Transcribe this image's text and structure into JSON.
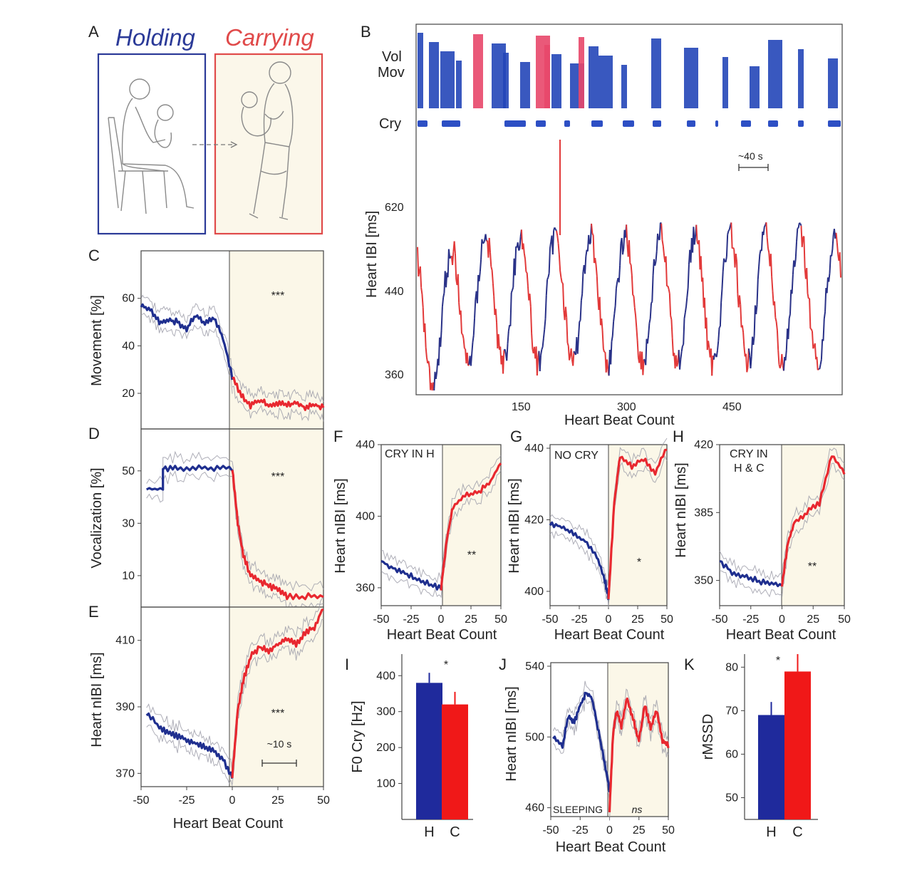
{
  "panelA": {
    "letter": "A",
    "left_label": "Holding",
    "right_label": "Carrying",
    "left_color": "#2b3a98",
    "right_color": "#e04a4a"
  },
  "panelB": {
    "letter": "B",
    "row_labels": [
      "Vol",
      "Mov",
      "Cry"
    ],
    "ylabel": "Heart IBI [ms]",
    "xlabel": "Heart Beat Count",
    "yticks": [
      360,
      440,
      620
    ],
    "xticks": [
      150,
      300,
      450
    ],
    "scale_bar": "~40 s"
  },
  "chart_data": [
    {
      "panel": "C",
      "type": "line",
      "ylabel": "Movement [%]",
      "xlabel": "",
      "x": [
        -50,
        -40,
        -30,
        -20,
        -10,
        0,
        10,
        20,
        30,
        40,
        50
      ],
      "series": [
        {
          "name": "Holding",
          "color": "#1f2f8f",
          "x": [
            -50,
            -45,
            -40,
            -35,
            -30,
            -25,
            -20,
            -15,
            -10,
            -5,
            0
          ],
          "y": [
            57,
            55,
            50,
            51,
            50,
            47,
            53,
            49,
            52,
            43,
            27
          ]
        },
        {
          "name": "Carrying",
          "color": "#e8282f",
          "x": [
            0,
            5,
            10,
            15,
            20,
            25,
            30,
            35,
            40,
            45,
            50
          ],
          "y": [
            27,
            19,
            15,
            17,
            15,
            16,
            15,
            16,
            14,
            15,
            14
          ]
        }
      ],
      "yticks": [
        20,
        40,
        60
      ],
      "ylim": [
        5,
        80
      ],
      "xlim": [
        -50,
        50
      ],
      "significance": "***"
    },
    {
      "panel": "D",
      "type": "line",
      "ylabel": "Vocalization [%]",
      "xlabel": "",
      "series": [
        {
          "name": "Holding",
          "color": "#1f2f8f",
          "x": [
            -47,
            -38,
            -38,
            -30,
            -20,
            -10,
            0
          ],
          "y": [
            43,
            43,
            51,
            51,
            51,
            51,
            51
          ]
        },
        {
          "name": "Carrying",
          "color": "#e8282f",
          "x": [
            0,
            3,
            6,
            10,
            15,
            20,
            25,
            30,
            40,
            50
          ],
          "y": [
            51,
            30,
            18,
            10,
            8,
            6,
            5,
            2,
            2,
            2
          ]
        }
      ],
      "yticks": [
        10,
        30,
        50
      ],
      "ylim": [
        -2,
        66
      ],
      "xlim": [
        -50,
        50
      ],
      "significance": "***"
    },
    {
      "panel": "E",
      "type": "line",
      "ylabel": "Heart nIBI [ms]",
      "xlabel": "Heart Beat Count",
      "series": [
        {
          "name": "Holding",
          "color": "#1f2f8f",
          "x": [
            -47,
            -40,
            -35,
            -30,
            -25,
            -20,
            -15,
            -10,
            -5,
            0
          ],
          "y": [
            388,
            384,
            382,
            381,
            380,
            379,
            378,
            377,
            374,
            369
          ]
        },
        {
          "name": "Carrying",
          "color": "#e8282f",
          "x": [
            0,
            3,
            6,
            10,
            15,
            20,
            25,
            30,
            35,
            40,
            45,
            50
          ],
          "y": [
            369,
            389,
            398,
            405,
            408,
            407,
            409,
            410,
            409,
            412,
            414,
            420
          ]
        }
      ],
      "xticks": [
        -50,
        -25,
        0,
        25,
        50
      ],
      "yticks": [
        370,
        390,
        410
      ],
      "ylim": [
        366,
        420
      ],
      "xlim": [
        -50,
        50
      ],
      "significance": "***",
      "scale_bar": "~10 s"
    },
    {
      "panel": "F",
      "type": "line",
      "title": "CRY IN H",
      "ylabel": "Heart nIBI [ms]",
      "xlabel": "Heart Beat Count",
      "series": [
        {
          "name": "Holding",
          "color": "#1f2f8f",
          "x": [
            -50,
            -40,
            -30,
            -20,
            -10,
            0
          ],
          "y": [
            375,
            371,
            368,
            365,
            362,
            360
          ]
        },
        {
          "name": "Carrying",
          "color": "#e8282f",
          "x": [
            0,
            5,
            10,
            20,
            30,
            40,
            50
          ],
          "y": [
            360,
            388,
            405,
            412,
            413,
            418,
            430
          ]
        }
      ],
      "xticks": [
        -50,
        -25,
        0,
        25,
        50
      ],
      "yticks": [
        360,
        400,
        440
      ],
      "ylim": [
        350,
        440
      ],
      "xlim": [
        -50,
        50
      ],
      "significance": "**"
    },
    {
      "panel": "G",
      "type": "line",
      "title": "NO CRY",
      "ylabel": "Heart nIBI [ms]",
      "xlabel": "Heart Beat Count",
      "series": [
        {
          "name": "Holding",
          "color": "#1f2f8f",
          "x": [
            -50,
            -40,
            -30,
            -20,
            -10,
            -3,
            0
          ],
          "y": [
            419,
            418,
            416,
            414,
            410,
            403,
            398
          ]
        },
        {
          "name": "Carrying",
          "color": "#e8282f",
          "x": [
            0,
            5,
            10,
            20,
            30,
            40,
            50
          ],
          "y": [
            398,
            425,
            438,
            435,
            437,
            433,
            440
          ]
        }
      ],
      "xticks": [
        -50,
        -25,
        0,
        25,
        50
      ],
      "yticks": [
        400,
        420,
        440
      ],
      "ylim": [
        396,
        441
      ],
      "xlim": [
        -50,
        50
      ],
      "significance": "*"
    },
    {
      "panel": "H",
      "type": "line",
      "title": "CRY IN H & C",
      "ylabel": "Heart nIBI [ms]",
      "xlabel": "Heart Beat Count",
      "series": [
        {
          "name": "Holding",
          "color": "#1f2f8f",
          "x": [
            -50,
            -40,
            -30,
            -20,
            -10,
            0
          ],
          "y": [
            360,
            354,
            352,
            350,
            348,
            348
          ]
        },
        {
          "name": "Carrying",
          "color": "#e8282f",
          "x": [
            0,
            5,
            10,
            20,
            30,
            40,
            50
          ],
          "y": [
            348,
            370,
            380,
            385,
            390,
            415,
            405
          ]
        }
      ],
      "xticks": [
        -50,
        -25,
        0,
        25,
        50
      ],
      "yticks": [
        350,
        385,
        420
      ],
      "ylim": [
        337,
        420
      ],
      "xlim": [
        -50,
        50
      ],
      "significance": "**"
    },
    {
      "panel": "I",
      "type": "bar",
      "ylabel": "F0 Cry [Hz]",
      "xlabel": "",
      "categories": [
        "H",
        "C"
      ],
      "values": [
        380,
        320
      ],
      "errors": [
        28,
        35
      ],
      "colors": [
        "#1f2a9c",
        "#f01818"
      ],
      "yticks": [
        100,
        200,
        300,
        400
      ],
      "ylim": [
        0,
        460
      ],
      "significance": "*"
    },
    {
      "panel": "J",
      "type": "line",
      "title": "SLEEPING",
      "ylabel": "Heart nIBI [ms]",
      "xlabel": "Heart Beat Count",
      "series": [
        {
          "name": "Holding",
          "color": "#1f2f8f",
          "x": [
            -48,
            -40,
            -35,
            -30,
            -25,
            -20,
            -15,
            -10,
            -5,
            0
          ],
          "y": [
            500,
            495,
            512,
            508,
            518,
            525,
            522,
            505,
            488,
            470
          ]
        },
        {
          "name": "Carrying",
          "color": "#e8282f",
          "x": [
            0,
            3,
            6,
            10,
            15,
            20,
            25,
            30,
            35,
            40,
            45,
            50
          ],
          "y": [
            458,
            502,
            515,
            506,
            522,
            510,
            498,
            518,
            505,
            515,
            498,
            495
          ]
        }
      ],
      "xticks": [
        -50,
        -25,
        0,
        25,
        50
      ],
      "yticks": [
        460,
        500,
        540
      ],
      "ylim": [
        455,
        542
      ],
      "xlim": [
        -50,
        50
      ],
      "significance": "ns"
    },
    {
      "panel": "K",
      "type": "bar",
      "ylabel": "rMSSD",
      "xlabel": "",
      "categories": [
        "H",
        "C"
      ],
      "values": [
        69,
        79
      ],
      "errors": [
        3,
        4
      ],
      "colors": [
        "#1f2a9c",
        "#f01818"
      ],
      "yticks": [
        50,
        60,
        70,
        80
      ],
      "ylim": [
        45,
        83
      ],
      "significance": "*"
    }
  ]
}
